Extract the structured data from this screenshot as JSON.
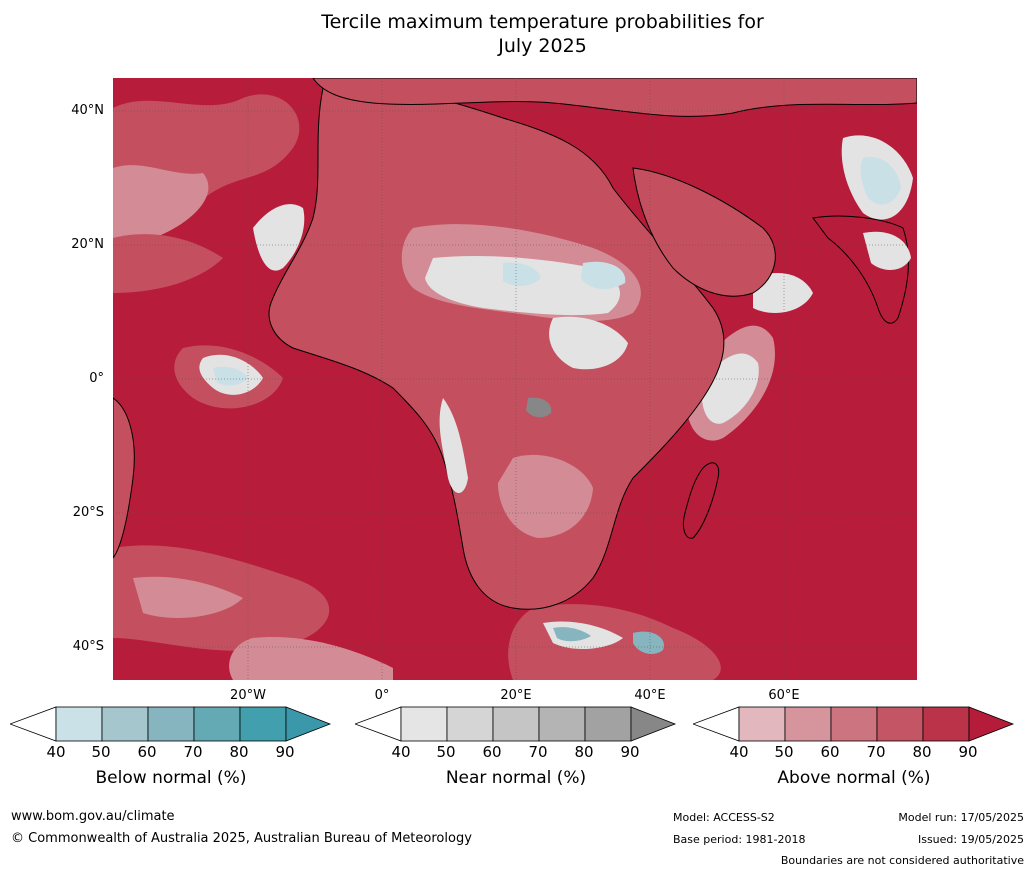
{
  "title": {
    "line1": "Tercile maximum temperature probabilities for",
    "line2": "July 2025"
  },
  "map": {
    "lat_labels": [
      "40°N",
      "20°N",
      "0°",
      "20°S",
      "40°S"
    ],
    "lon_labels": [
      "20°W",
      "0°",
      "20°E",
      "40°E",
      "60°E"
    ],
    "colors": {
      "ocean_above": "#b71c3a",
      "land_above_mid": "#c4505f",
      "above_low": "#d38c96",
      "near": "#e3e3e3",
      "below": "#c8e0e6",
      "coast": "#000000",
      "border": "#8c8c8c"
    }
  },
  "colorbars": {
    "below": {
      "label": "Below normal (%)",
      "ticks": [
        "40",
        "50",
        "60",
        "70",
        "80",
        "90"
      ],
      "colors": [
        "#c9e1e7",
        "#a5c6cc",
        "#86b5bf",
        "#64aab5",
        "#419fae",
        "#3b97aa"
      ]
    },
    "near": {
      "label": "Near normal (%)",
      "ticks": [
        "40",
        "50",
        "60",
        "70",
        "80",
        "90"
      ],
      "colors": [
        "#e5e5e5",
        "#d5d5d5",
        "#c5c5c5",
        "#b4b4b4",
        "#a2a2a2",
        "#878787"
      ]
    },
    "above": {
      "label": "Above normal (%)",
      "ticks": [
        "40",
        "50",
        "60",
        "70",
        "80",
        "90"
      ],
      "colors": [
        "#e2b7be",
        "#d6949d",
        "#cc7580",
        "#c35565",
        "#bb3349",
        "#b51c3a"
      ]
    }
  },
  "footer": {
    "website": "www.bom.gov.au/climate",
    "copyright": "© Commonwealth of Australia 2025, Australian Bureau of Meteorology",
    "model": "Model: ACCESS-S2",
    "base_period": "Base period: 1981-2018",
    "model_run": "Model run: 17/05/2025",
    "issued": "Issued: 19/05/2025",
    "disclaimer": "Boundaries are not considered authoritative"
  }
}
